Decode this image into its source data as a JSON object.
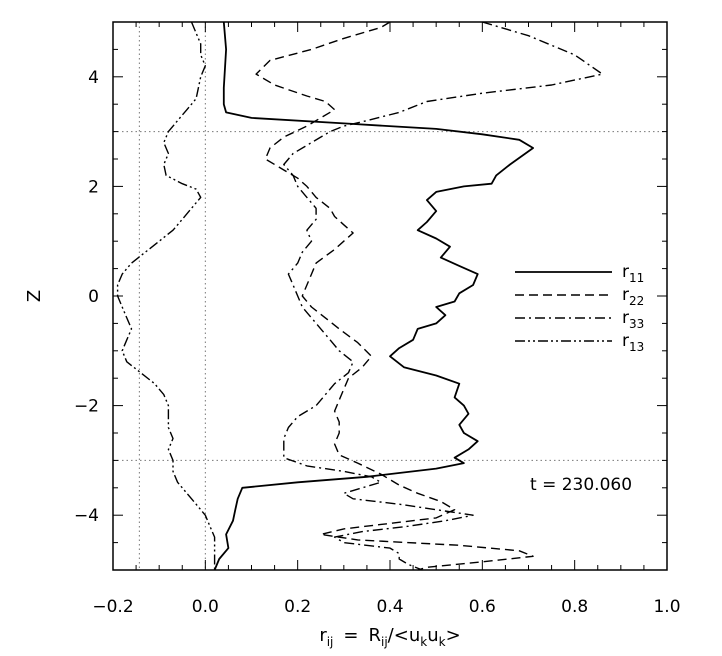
{
  "chart_data": {
    "type": "line",
    "xlabel": "r_ij = R_ij/<u_k u_k>",
    "xlabel_parts": {
      "main": "r",
      "sub": "ij",
      "eq": "=",
      "R": "R",
      "Rsub": "ij",
      "slash_lt": "/<",
      "u1": "u",
      "u1sub": "k",
      "u2": "u",
      "u2sub": "k",
      "gt": ">"
    },
    "ylabel": "Z",
    "xlim": [
      -0.2,
      1.0
    ],
    "ylim": [
      -5,
      5
    ],
    "xticks": [
      -0.2,
      0.0,
      0.2,
      0.4,
      0.6,
      0.8,
      1.0
    ],
    "xtick_labels": [
      "−0.2",
      "0.0",
      "0.2",
      "0.4",
      "0.6",
      "0.8",
      "1.0"
    ],
    "yticks": [
      -4,
      -2,
      0,
      2,
      4
    ],
    "ytick_labels": [
      "−4",
      "−2",
      "0",
      "2",
      "4"
    ],
    "reference_lines": {
      "vertical": [
        -0.1429,
        0.0
      ],
      "horizontal": [
        -3,
        3
      ],
      "style": "dotted"
    },
    "legend_placement": "right",
    "annotation": "t = 230.060",
    "series": [
      {
        "name": "r11",
        "label_main": "r",
        "label_sub": "11",
        "dash": "solid",
        "points": [
          [
            0.04,
            5.0
          ],
          [
            0.045,
            4.5
          ],
          [
            0.04,
            3.8
          ],
          [
            0.04,
            3.5
          ],
          [
            0.045,
            3.35
          ],
          [
            0.1,
            3.25
          ],
          [
            0.3,
            3.15
          ],
          [
            0.5,
            3.05
          ],
          [
            0.6,
            2.95
          ],
          [
            0.68,
            2.85
          ],
          [
            0.71,
            2.7
          ],
          [
            0.66,
            2.4
          ],
          [
            0.63,
            2.2
          ],
          [
            0.62,
            2.05
          ],
          [
            0.56,
            2.0
          ],
          [
            0.5,
            1.9
          ],
          [
            0.48,
            1.75
          ],
          [
            0.5,
            1.55
          ],
          [
            0.48,
            1.35
          ],
          [
            0.46,
            1.2
          ],
          [
            0.5,
            1.05
          ],
          [
            0.53,
            0.9
          ],
          [
            0.51,
            0.7
          ],
          [
            0.55,
            0.55
          ],
          [
            0.59,
            0.4
          ],
          [
            0.58,
            0.2
          ],
          [
            0.55,
            0.05
          ],
          [
            0.54,
            -0.1
          ],
          [
            0.5,
            -0.2
          ],
          [
            0.52,
            -0.35
          ],
          [
            0.5,
            -0.5
          ],
          [
            0.46,
            -0.6
          ],
          [
            0.45,
            -0.8
          ],
          [
            0.42,
            -0.95
          ],
          [
            0.4,
            -1.1
          ],
          [
            0.43,
            -1.3
          ],
          [
            0.5,
            -1.45
          ],
          [
            0.55,
            -1.6
          ],
          [
            0.54,
            -1.85
          ],
          [
            0.56,
            -2.0
          ],
          [
            0.57,
            -2.15
          ],
          [
            0.55,
            -2.35
          ],
          [
            0.56,
            -2.5
          ],
          [
            0.59,
            -2.65
          ],
          [
            0.57,
            -2.8
          ],
          [
            0.54,
            -2.95
          ],
          [
            0.56,
            -3.05
          ],
          [
            0.5,
            -3.15
          ],
          [
            0.35,
            -3.3
          ],
          [
            0.2,
            -3.4
          ],
          [
            0.08,
            -3.5
          ],
          [
            0.07,
            -3.7
          ],
          [
            0.065,
            -3.9
          ],
          [
            0.06,
            -4.1
          ],
          [
            0.045,
            -4.35
          ],
          [
            0.05,
            -4.6
          ],
          [
            0.03,
            -4.8
          ],
          [
            0.02,
            -5.0
          ]
        ]
      },
      {
        "name": "r22",
        "label_main": "r",
        "label_sub": "22",
        "dash": "dashed",
        "points": [
          [
            0.4,
            5.0
          ],
          [
            0.38,
            4.9
          ],
          [
            0.3,
            4.7
          ],
          [
            0.23,
            4.5
          ],
          [
            0.14,
            4.3
          ],
          [
            0.11,
            4.05
          ],
          [
            0.15,
            3.85
          ],
          [
            0.22,
            3.65
          ],
          [
            0.26,
            3.55
          ],
          [
            0.28,
            3.4
          ],
          [
            0.24,
            3.2
          ],
          [
            0.22,
            3.1
          ],
          [
            0.17,
            2.9
          ],
          [
            0.14,
            2.7
          ],
          [
            0.13,
            2.5
          ],
          [
            0.17,
            2.3
          ],
          [
            0.2,
            2.15
          ],
          [
            0.22,
            2.0
          ],
          [
            0.24,
            1.8
          ],
          [
            0.27,
            1.6
          ],
          [
            0.28,
            1.45
          ],
          [
            0.3,
            1.3
          ],
          [
            0.32,
            1.15
          ],
          [
            0.3,
            1.0
          ],
          [
            0.28,
            0.85
          ],
          [
            0.24,
            0.6
          ],
          [
            0.23,
            0.4
          ],
          [
            0.22,
            0.2
          ],
          [
            0.21,
            0.0
          ],
          [
            0.23,
            -0.2
          ],
          [
            0.26,
            -0.4
          ],
          [
            0.29,
            -0.6
          ],
          [
            0.33,
            -0.85
          ],
          [
            0.36,
            -1.1
          ],
          [
            0.34,
            -1.3
          ],
          [
            0.31,
            -1.5
          ],
          [
            0.3,
            -1.7
          ],
          [
            0.29,
            -1.9
          ],
          [
            0.28,
            -2.1
          ],
          [
            0.29,
            -2.3
          ],
          [
            0.29,
            -2.5
          ],
          [
            0.28,
            -2.7
          ],
          [
            0.29,
            -2.9
          ],
          [
            0.33,
            -3.05
          ],
          [
            0.38,
            -3.25
          ],
          [
            0.42,
            -3.45
          ],
          [
            0.46,
            -3.6
          ],
          [
            0.51,
            -3.75
          ],
          [
            0.54,
            -3.9
          ],
          [
            0.5,
            -4.05
          ],
          [
            0.4,
            -4.15
          ],
          [
            0.3,
            -4.25
          ],
          [
            0.25,
            -4.35
          ],
          [
            0.33,
            -4.45
          ],
          [
            0.55,
            -4.55
          ],
          [
            0.68,
            -4.65
          ],
          [
            0.71,
            -4.75
          ],
          [
            0.6,
            -4.85
          ],
          [
            0.48,
            -4.95
          ],
          [
            0.46,
            -5.0
          ]
        ]
      },
      {
        "name": "r33",
        "label_main": "r",
        "label_sub": "33",
        "dash": "dashdot",
        "points": [
          [
            0.6,
            5.0
          ],
          [
            0.7,
            4.75
          ],
          [
            0.8,
            4.4
          ],
          [
            0.86,
            4.05
          ],
          [
            0.75,
            3.85
          ],
          [
            0.6,
            3.7
          ],
          [
            0.48,
            3.55
          ],
          [
            0.42,
            3.35
          ],
          [
            0.35,
            3.2
          ],
          [
            0.3,
            3.1
          ],
          [
            0.27,
            3.0
          ],
          [
            0.23,
            2.8
          ],
          [
            0.19,
            2.6
          ],
          [
            0.17,
            2.4
          ],
          [
            0.19,
            2.2
          ],
          [
            0.2,
            2.0
          ],
          [
            0.22,
            1.8
          ],
          [
            0.24,
            1.6
          ],
          [
            0.24,
            1.4
          ],
          [
            0.22,
            1.2
          ],
          [
            0.23,
            1.0
          ],
          [
            0.21,
            0.8
          ],
          [
            0.2,
            0.6
          ],
          [
            0.18,
            0.4
          ],
          [
            0.19,
            0.2
          ],
          [
            0.2,
            0.0
          ],
          [
            0.21,
            -0.2
          ],
          [
            0.23,
            -0.4
          ],
          [
            0.25,
            -0.6
          ],
          [
            0.27,
            -0.8
          ],
          [
            0.29,
            -1.0
          ],
          [
            0.32,
            -1.2
          ],
          [
            0.31,
            -1.4
          ],
          [
            0.28,
            -1.6
          ],
          [
            0.26,
            -1.8
          ],
          [
            0.24,
            -2.0
          ],
          [
            0.2,
            -2.2
          ],
          [
            0.18,
            -2.4
          ],
          [
            0.17,
            -2.6
          ],
          [
            0.17,
            -2.8
          ],
          [
            0.17,
            -2.95
          ],
          [
            0.22,
            -3.1
          ],
          [
            0.3,
            -3.2
          ],
          [
            0.36,
            -3.3
          ],
          [
            0.38,
            -3.4
          ],
          [
            0.34,
            -3.5
          ],
          [
            0.3,
            -3.6
          ],
          [
            0.32,
            -3.7
          ],
          [
            0.42,
            -3.8
          ],
          [
            0.5,
            -3.9
          ],
          [
            0.58,
            -4.0
          ],
          [
            0.52,
            -4.1
          ],
          [
            0.44,
            -4.2
          ],
          [
            0.34,
            -4.3
          ],
          [
            0.28,
            -4.4
          ],
          [
            0.3,
            -4.5
          ],
          [
            0.4,
            -4.6
          ],
          [
            0.42,
            -4.7
          ],
          [
            0.42,
            -4.8
          ],
          [
            0.44,
            -4.9
          ],
          [
            0.47,
            -5.0
          ]
        ]
      },
      {
        "name": "r13",
        "label_main": "r",
        "label_sub": "13",
        "dash": "dashdotdot",
        "points": [
          [
            -0.03,
            5.0
          ],
          [
            -0.02,
            4.8
          ],
          [
            -0.01,
            4.6
          ],
          [
            -0.01,
            4.4
          ],
          [
            0.0,
            4.2
          ],
          [
            -0.01,
            4.0
          ],
          [
            -0.015,
            3.8
          ],
          [
            -0.02,
            3.6
          ],
          [
            -0.04,
            3.4
          ],
          [
            -0.06,
            3.2
          ],
          [
            -0.08,
            3.0
          ],
          [
            -0.09,
            2.8
          ],
          [
            -0.08,
            2.6
          ],
          [
            -0.09,
            2.4
          ],
          [
            -0.085,
            2.2
          ],
          [
            -0.05,
            2.05
          ],
          [
            -0.02,
            1.95
          ],
          [
            -0.01,
            1.8
          ],
          [
            -0.03,
            1.6
          ],
          [
            -0.05,
            1.4
          ],
          [
            -0.07,
            1.2
          ],
          [
            -0.1,
            1.0
          ],
          [
            -0.13,
            0.8
          ],
          [
            -0.16,
            0.6
          ],
          [
            -0.18,
            0.4
          ],
          [
            -0.19,
            0.2
          ],
          [
            -0.19,
            0.0
          ],
          [
            -0.18,
            -0.2
          ],
          [
            -0.17,
            -0.4
          ],
          [
            -0.16,
            -0.6
          ],
          [
            -0.17,
            -0.8
          ],
          [
            -0.18,
            -1.0
          ],
          [
            -0.17,
            -1.2
          ],
          [
            -0.14,
            -1.4
          ],
          [
            -0.11,
            -1.6
          ],
          [
            -0.09,
            -1.8
          ],
          [
            -0.08,
            -2.0
          ],
          [
            -0.08,
            -2.2
          ],
          [
            -0.08,
            -2.4
          ],
          [
            -0.07,
            -2.6
          ],
          [
            -0.08,
            -2.8
          ],
          [
            -0.07,
            -3.0
          ],
          [
            -0.07,
            -3.2
          ],
          [
            -0.06,
            -3.4
          ],
          [
            -0.04,
            -3.6
          ],
          [
            -0.02,
            -3.8
          ],
          [
            0.0,
            -4.0
          ],
          [
            0.01,
            -4.2
          ],
          [
            0.02,
            -4.4
          ],
          [
            0.02,
            -4.6
          ],
          [
            0.02,
            -4.8
          ],
          [
            0.02,
            -5.0
          ]
        ]
      }
    ]
  }
}
